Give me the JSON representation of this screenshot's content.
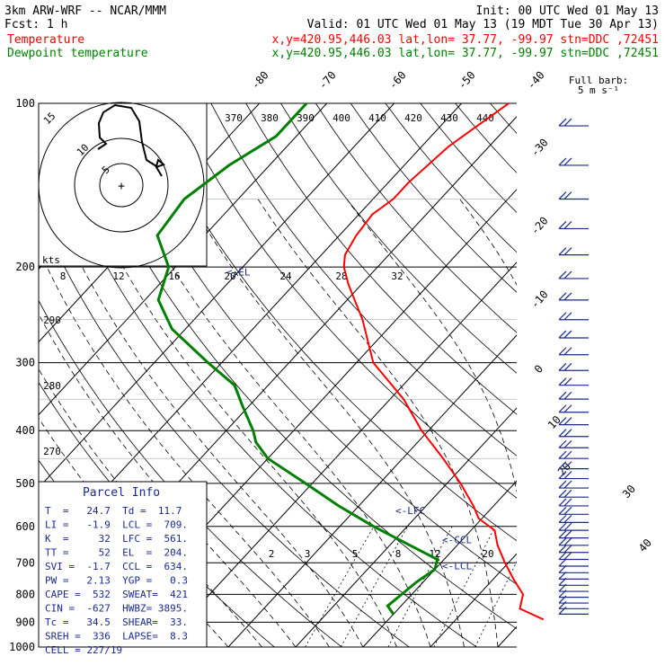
{
  "header": {
    "line1_left": "3km ARW-WRF -- NCAR/MMM",
    "line1_right": "Init: 00 UTC Wed 01 May 13",
    "line2_left": "Fcst:    1 h",
    "line2_right": "Valid: 01 UTC Wed 01 May 13 (19 MDT Tue 30 Apr 13)",
    "temp_label": "Temperature",
    "temp_info": "x,y=420.95,446.03   lat,lon= 37.77, -99.97   stn=DDC ,72451",
    "dew_label": "Dewpoint temperature",
    "dew_info": "x,y=420.95,446.03   lat,lon= 37.77, -99.97   stn=DDC ,72451",
    "temp_color": "#ff0000",
    "dew_color": "#008000"
  },
  "barb_header": [
    "Full barb:",
    "5 m s⁻¹"
  ],
  "hodograph": {
    "axis_label": "kts",
    "ring_labels": [
      "5",
      "10",
      "15"
    ]
  },
  "parcel_info": {
    "title": "Parcel Info",
    "rows": [
      "T  =   24.7  Td =  11.7",
      "LI =   -1.9  LCL =  709.",
      "K  =     32  LFC =  561.",
      "TT =     52  EL  =  204.",
      "SVI =  -1.7  CCL =  634.",
      "PW =   2.13  YGP =   0.3",
      "CAPE =  532  SWEAT=  421",
      "CIN =  -627  HWBZ= 3895.",
      "Tc =   34.5  SHEAR=  33.",
      "SREH =  336  LAPSE=  8.3",
      "CELL = 227/19"
    ]
  },
  "level_markers": [
    {
      "label": "<-EL",
      "p": 204
    },
    {
      "label": "<-LFC",
      "p": 561
    },
    {
      "label": "<-CCL",
      "p": 634
    },
    {
      "label": "<-LCL",
      "p": 709
    }
  ],
  "chart_data": {
    "type": "line",
    "subtype": "skew-T log-p diagram",
    "y_axis": {
      "label": "",
      "scale": "log",
      "unit": "hPa",
      "ticks": [
        100,
        200,
        300,
        400,
        500,
        600,
        700,
        800,
        900,
        1000
      ],
      "range": [
        1000,
        100
      ]
    },
    "isotherm_labels": [
      -80,
      -70,
      -60,
      -50,
      -40,
      -30,
      -20,
      -10,
      0,
      10,
      20,
      30,
      40
    ],
    "theta_labels": [
      370,
      380,
      390,
      400,
      410,
      420,
      430,
      440
    ],
    "dry_adiabat_labels": [
      290,
      280,
      270
    ],
    "mixing_ratio_labels": [
      "2",
      "3",
      "5",
      "8",
      "12",
      "20"
    ],
    "hodo_speed_labels": [
      "8",
      "12",
      "16",
      "20",
      "24",
      "28",
      "32"
    ],
    "series": [
      {
        "name": "Temperature",
        "color": "#ff0000",
        "points": [
          [
            100,
            -53
          ],
          [
            120,
            -56
          ],
          [
            140,
            -57
          ],
          [
            150,
            -57
          ],
          [
            160,
            -58
          ],
          [
            175,
            -57.5
          ],
          [
            190,
            -56.5
          ],
          [
            200,
            -55
          ],
          [
            215,
            -52
          ],
          [
            250,
            -45
          ],
          [
            300,
            -37.5
          ],
          [
            350,
            -28
          ],
          [
            400,
            -21
          ],
          [
            450,
            -14
          ],
          [
            500,
            -8
          ],
          [
            550,
            -3
          ],
          [
            580,
            -0.5
          ],
          [
            610,
            3.5
          ],
          [
            650,
            6
          ],
          [
            700,
            9.5
          ],
          [
            750,
            13
          ],
          [
            800,
            16.5
          ],
          [
            850,
            18
          ],
          [
            890,
            23
          ]
        ]
      },
      {
        "name": "Dewpoint temperature",
        "color": "#008000",
        "points": [
          [
            100,
            -83
          ],
          [
            115,
            -83
          ],
          [
            130,
            -86
          ],
          [
            150,
            -88
          ],
          [
            175,
            -87
          ],
          [
            200,
            -81
          ],
          [
            230,
            -78
          ],
          [
            260,
            -72
          ],
          [
            300,
            -62
          ],
          [
            330,
            -55
          ],
          [
            360,
            -51
          ],
          [
            400,
            -46
          ],
          [
            420,
            -44
          ],
          [
            450,
            -40
          ],
          [
            500,
            -31
          ],
          [
            550,
            -23
          ],
          [
            600,
            -15
          ],
          [
            650,
            -7
          ],
          [
            690,
            -1
          ],
          [
            720,
            0
          ],
          [
            760,
            -1
          ],
          [
            800,
            -1.5
          ],
          [
            840,
            -2
          ],
          [
            870,
            0
          ]
        ]
      }
    ]
  }
}
